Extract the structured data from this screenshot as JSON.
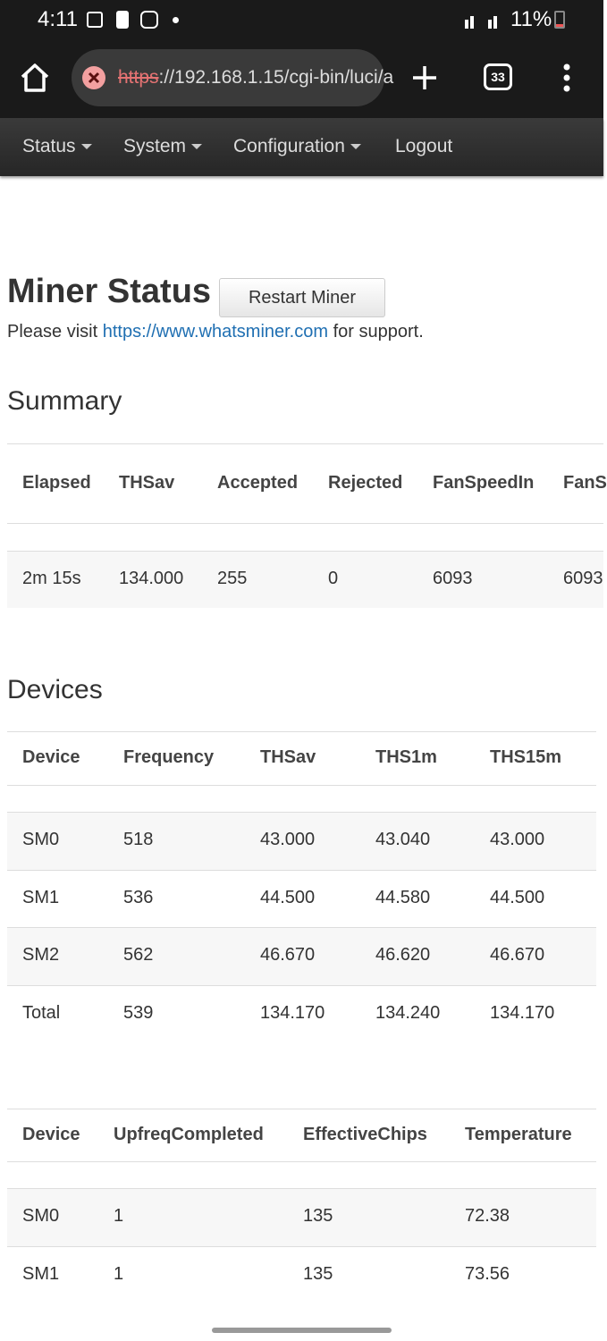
{
  "status_bar": {
    "time": "4:11",
    "battery": "11%"
  },
  "browser": {
    "url_scheme": "https",
    "url_rest": "://192.168.1.15/cgi-bin/luci/a",
    "tab_count": "33"
  },
  "nav": [
    "Status",
    "System",
    "Configuration",
    "Logout"
  ],
  "page": {
    "title": "Miner Status",
    "restart_button": "Restart Miner",
    "support_prefix": "Please visit",
    "support_link": "https://www.whatsminer.com",
    "support_suffix": "for support."
  },
  "summary": {
    "title": "Summary",
    "headers": [
      "Elapsed",
      "THSav",
      "Accepted",
      "Rejected",
      "FanSpeedIn",
      "FanS"
    ],
    "rows": [
      [
        "2m 15s",
        "134.000",
        "255",
        "0",
        "6093",
        "6093"
      ]
    ]
  },
  "devices": {
    "title": "Devices",
    "table1": {
      "headers": [
        "Device",
        "Frequency",
        "THSav",
        "THS1m",
        "THS15m"
      ],
      "rows": [
        [
          "SM0",
          "518",
          "43.000",
          "43.040",
          "43.000"
        ],
        [
          "SM1",
          "536",
          "44.500",
          "44.580",
          "44.500"
        ],
        [
          "SM2",
          "562",
          "46.670",
          "46.620",
          "46.670"
        ],
        [
          "Total",
          "539",
          "134.170",
          "134.240",
          "134.170"
        ]
      ]
    },
    "table2": {
      "headers": [
        "Device",
        "UpfreqCompleted",
        "EffectiveChips",
        "Temperature"
      ],
      "rows": [
        [
          "SM0",
          "1",
          "135",
          "72.38"
        ],
        [
          "SM1",
          "1",
          "135",
          "73.56"
        ]
      ]
    }
  }
}
